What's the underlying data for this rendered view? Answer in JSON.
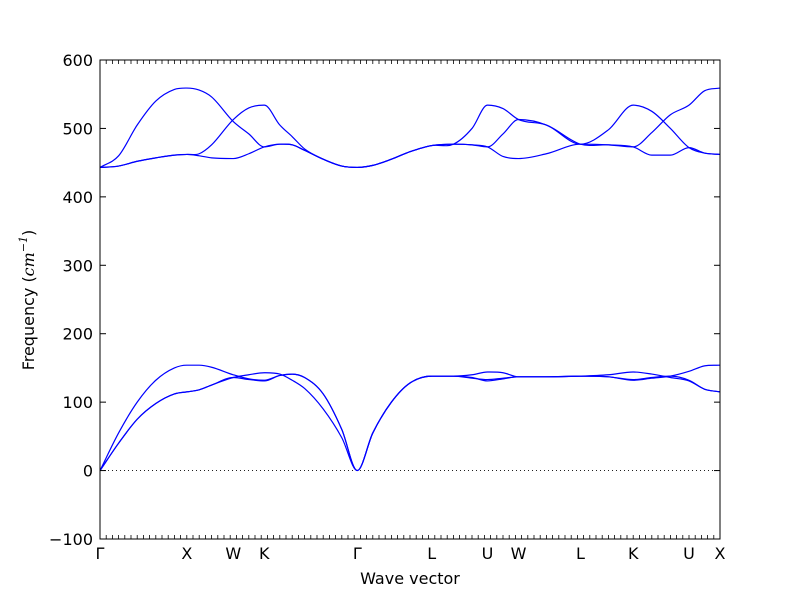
{
  "chart_data": {
    "type": "line",
    "title": "",
    "xlabel": "Wave vector",
    "ylabel_prefix": "Frequency (",
    "ylabel_math": "cm",
    "ylabel_sup": "−1",
    "ylabel_suffix": ")",
    "ylim": [
      -100,
      600
    ],
    "yticks": [
      -100,
      0,
      100,
      200,
      300,
      400,
      500,
      600
    ],
    "x_range": [
      0,
      100
    ],
    "path_points": [
      {
        "label": "Γ",
        "x": 0
      },
      {
        "label": "X",
        "x": 14
      },
      {
        "label": "W",
        "x": 21.5
      },
      {
        "label": "K",
        "x": 26.5
      },
      {
        "label": "Γ",
        "x": 41.5
      },
      {
        "label": "L",
        "x": 53.5
      },
      {
        "label": "U",
        "x": 62.5
      },
      {
        "label": "W",
        "x": 67.5
      },
      {
        "label": "L",
        "x": 77.5
      },
      {
        "label": "K",
        "x": 86
      },
      {
        "label": "U",
        "x": 95
      },
      {
        "label": "X",
        "x": 100
      }
    ],
    "zero_line": true,
    "series_color": "#0000ff",
    "series": [
      {
        "values": [
          [
            0,
            0
          ],
          [
            3,
            55
          ],
          [
            6,
            100
          ],
          [
            9,
            132
          ],
          [
            12,
            150
          ],
          [
            14,
            154
          ],
          [
            16,
            154
          ],
          [
            18,
            151
          ],
          [
            21.5,
            140
          ],
          [
            24,
            134
          ],
          [
            26.5,
            132
          ],
          [
            29,
            139
          ],
          [
            31,
            141
          ],
          [
            33,
            136
          ],
          [
            36,
            112
          ],
          [
            39,
            60
          ],
          [
            41.5,
            0
          ],
          [
            44,
            55
          ],
          [
            47,
            100
          ],
          [
            50,
            128
          ],
          [
            53.5,
            138
          ],
          [
            57,
            138
          ],
          [
            60,
            136
          ],
          [
            62.5,
            131
          ],
          [
            65,
            134
          ],
          [
            67.5,
            137
          ],
          [
            72,
            137
          ],
          [
            77.5,
            138
          ],
          [
            82,
            137
          ],
          [
            86,
            132
          ],
          [
            89,
            135
          ],
          [
            92,
            138
          ],
          [
            95,
            145
          ],
          [
            97.5,
            153
          ],
          [
            100,
            154
          ]
        ]
      },
      {
        "values": [
          [
            0,
            0
          ],
          [
            3,
            40
          ],
          [
            6,
            75
          ],
          [
            9,
            98
          ],
          [
            12,
            112
          ],
          [
            14,
            115
          ],
          [
            16,
            118
          ],
          [
            18,
            125
          ],
          [
            21.5,
            136
          ],
          [
            24,
            140
          ],
          [
            26.5,
            143
          ],
          [
            29,
            141
          ],
          [
            31,
            132
          ],
          [
            33,
            120
          ],
          [
            36,
            90
          ],
          [
            39,
            48
          ],
          [
            41.5,
            0
          ],
          [
            44,
            55
          ],
          [
            47,
            100
          ],
          [
            50,
            128
          ],
          [
            53.5,
            138
          ],
          [
            57,
            138
          ],
          [
            60,
            140
          ],
          [
            62.5,
            144
          ],
          [
            65,
            143
          ],
          [
            67.5,
            137
          ],
          [
            72,
            137
          ],
          [
            77.5,
            138
          ],
          [
            82,
            140
          ],
          [
            86,
            144
          ],
          [
            89,
            141
          ],
          [
            92,
            136
          ],
          [
            95,
            131
          ],
          [
            97.5,
            119
          ],
          [
            100,
            115
          ]
        ]
      },
      {
        "values": [
          [
            0,
            0
          ],
          [
            3,
            40
          ],
          [
            6,
            75
          ],
          [
            9,
            98
          ],
          [
            12,
            112
          ],
          [
            14,
            115
          ],
          [
            16,
            118
          ],
          [
            18,
            125
          ],
          [
            21.5,
            136
          ],
          [
            24,
            133
          ],
          [
            26.5,
            131
          ],
          [
            29,
            139
          ],
          [
            31,
            141
          ],
          [
            33,
            136
          ],
          [
            36,
            112
          ],
          [
            39,
            60
          ],
          [
            41.5,
            0
          ],
          [
            44,
            55
          ],
          [
            47,
            100
          ],
          [
            50,
            128
          ],
          [
            53.5,
            138
          ],
          [
            57,
            138
          ],
          [
            60,
            135
          ],
          [
            62.5,
            133
          ],
          [
            65,
            135
          ],
          [
            67.5,
            137
          ],
          [
            72,
            137
          ],
          [
            77.5,
            138
          ],
          [
            82,
            137
          ],
          [
            86,
            133
          ],
          [
            89,
            136
          ],
          [
            92,
            138
          ],
          [
            95,
            132
          ],
          [
            97.5,
            119
          ],
          [
            100,
            115
          ]
        ]
      },
      {
        "values": [
          [
            0,
            443
          ],
          [
            3,
            460
          ],
          [
            6,
            505
          ],
          [
            9,
            540
          ],
          [
            12,
            557
          ],
          [
            14,
            559
          ],
          [
            16,
            556
          ],
          [
            18,
            546
          ],
          [
            21.5,
            510
          ],
          [
            24,
            492
          ],
          [
            26.5,
            473
          ],
          [
            29,
            477
          ],
          [
            31,
            476
          ],
          [
            33,
            468
          ],
          [
            36,
            455
          ],
          [
            39,
            445
          ],
          [
            41.5,
            443
          ],
          [
            44,
            446
          ],
          [
            47,
            455
          ],
          [
            50,
            466
          ],
          [
            53.5,
            475
          ],
          [
            57,
            477
          ],
          [
            60,
            500
          ],
          [
            62.5,
            534
          ],
          [
            65,
            529
          ],
          [
            67.5,
            513
          ],
          [
            72,
            505
          ],
          [
            77.5,
            477
          ],
          [
            82,
            498
          ],
          [
            86,
            534
          ],
          [
            89,
            525
          ],
          [
            92,
            500
          ],
          [
            95,
            472
          ],
          [
            97.5,
            464
          ],
          [
            100,
            462
          ]
        ]
      },
      {
        "values": [
          [
            0,
            443
          ],
          [
            3,
            445
          ],
          [
            6,
            452
          ],
          [
            9,
            457
          ],
          [
            12,
            461
          ],
          [
            14,
            462
          ],
          [
            16,
            463
          ],
          [
            18,
            476
          ],
          [
            21.5,
            513
          ],
          [
            24,
            530
          ],
          [
            26.5,
            534
          ],
          [
            29,
            505
          ],
          [
            31,
            488
          ],
          [
            33,
            470
          ],
          [
            36,
            455
          ],
          [
            39,
            445
          ],
          [
            41.5,
            443
          ],
          [
            44,
            446
          ],
          [
            47,
            455
          ],
          [
            50,
            466
          ],
          [
            53.5,
            475
          ],
          [
            57,
            477
          ],
          [
            60,
            476
          ],
          [
            62.5,
            473
          ],
          [
            65,
            492
          ],
          [
            67.5,
            513
          ],
          [
            72,
            505
          ],
          [
            77.5,
            477
          ],
          [
            82,
            476
          ],
          [
            86,
            473
          ],
          [
            89,
            494
          ],
          [
            92,
            520
          ],
          [
            95,
            534
          ],
          [
            97.5,
            555
          ],
          [
            100,
            559
          ]
        ]
      },
      {
        "values": [
          [
            0,
            443
          ],
          [
            3,
            445
          ],
          [
            6,
            452
          ],
          [
            9,
            457
          ],
          [
            12,
            461
          ],
          [
            14,
            462
          ],
          [
            16,
            460
          ],
          [
            18,
            457
          ],
          [
            21.5,
            456
          ],
          [
            24,
            463
          ],
          [
            26.5,
            473
          ],
          [
            29,
            477
          ],
          [
            31,
            476
          ],
          [
            33,
            468
          ],
          [
            36,
            455
          ],
          [
            39,
            445
          ],
          [
            41.5,
            443
          ],
          [
            44,
            446
          ],
          [
            47,
            455
          ],
          [
            50,
            466
          ],
          [
            53.5,
            475
          ],
          [
            57,
            477
          ],
          [
            60,
            476
          ],
          [
            62.5,
            473
          ],
          [
            65,
            459
          ],
          [
            67.5,
            456
          ],
          [
            72,
            463
          ],
          [
            77.5,
            477
          ],
          [
            82,
            476
          ],
          [
            86,
            473
          ],
          [
            89,
            461
          ],
          [
            92,
            461
          ],
          [
            95,
            472
          ],
          [
            97.5,
            464
          ],
          [
            100,
            462
          ]
        ]
      }
    ]
  }
}
